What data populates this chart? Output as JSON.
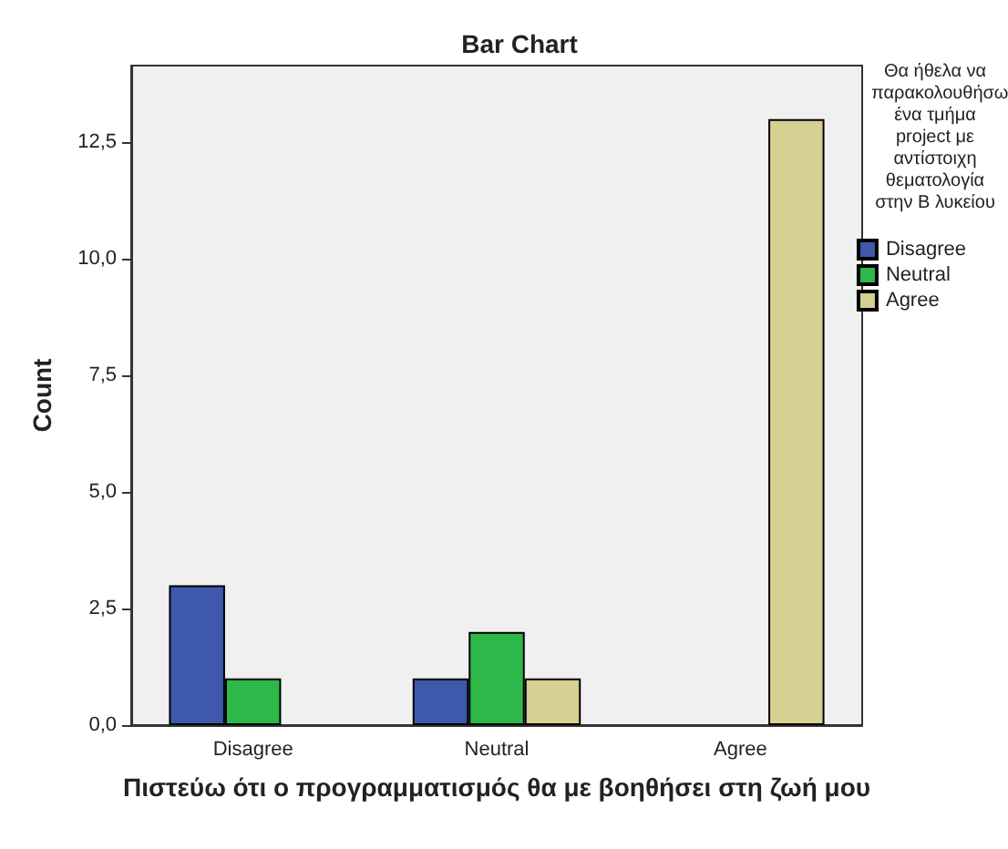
{
  "chart_data": {
    "type": "bar",
    "title": "Bar Chart",
    "xlabel": "Πιστεύω ότι ο προγραμματισμός θα με βοηθήσει στη ζωή μου",
    "ylabel": "Count",
    "legend_title": "Θα ήθελα να παρακολουθήσω ένα τμήμα project με αντίστοιχη θεματολογία στην Β λυκείου",
    "categories": [
      "Disagree",
      "Neutral",
      "Agree"
    ],
    "series": [
      {
        "name": "Disagree",
        "color": "#3e58ac",
        "values": [
          3,
          1,
          null
        ]
      },
      {
        "name": "Neutral",
        "color": "#2db84a",
        "values": [
          1,
          2,
          null
        ]
      },
      {
        "name": "Agree",
        "color": "#d6cf92",
        "values": [
          null,
          1,
          13
        ]
      }
    ],
    "ylim": [
      0,
      14.15
    ],
    "yticks": [
      {
        "value": 0,
        "label": "0,0"
      },
      {
        "value": 2.5,
        "label": "2,5"
      },
      {
        "value": 5,
        "label": "5,0"
      },
      {
        "value": 7.5,
        "label": "7,5"
      },
      {
        "value": 10,
        "label": "10,0"
      },
      {
        "value": 12.5,
        "label": "12,5"
      }
    ],
    "grid": false,
    "legend": "right"
  }
}
